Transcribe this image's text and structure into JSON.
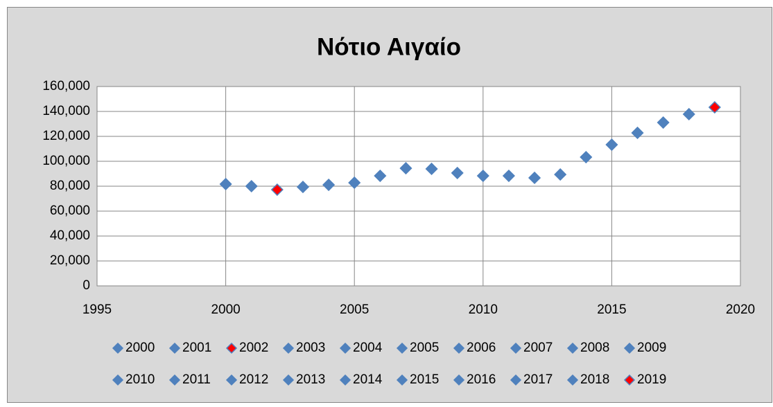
{
  "chart_data": {
    "type": "scatter",
    "title": "Νότιο Αιγαίο",
    "xlim": [
      1995,
      2020
    ],
    "xticks": [
      1995,
      2000,
      2005,
      2010,
      2015,
      2020
    ],
    "ylim": [
      0,
      160000
    ],
    "yticks": [
      0,
      {
        "value": 20000,
        "label": "20,000"
      },
      {
        "value": 40000,
        "label": "40,000"
      },
      {
        "value": 60000,
        "label": "60,000"
      },
      {
        "value": 80000,
        "label": "80,000"
      },
      {
        "value": 100000,
        "label": "100,000"
      },
      {
        "value": 120000,
        "label": "120,000"
      },
      {
        "value": 140000,
        "label": "140,000"
      },
      {
        "value": 160000,
        "label": "160,000"
      }
    ],
    "grid": true,
    "legend": "bottom",
    "marker_edge_color": "#4f81bd",
    "series": [
      {
        "name": "2000",
        "color": "#4f81bd",
        "x": [
          2000
        ],
        "values": [
          81700
        ]
      },
      {
        "name": "2001",
        "color": "#4f81bd",
        "x": [
          2001
        ],
        "values": [
          80000
        ]
      },
      {
        "name": "2002",
        "color": "#ff0000",
        "x": [
          2002
        ],
        "values": [
          77200
        ]
      },
      {
        "name": "2003",
        "color": "#4f81bd",
        "x": [
          2003
        ],
        "values": [
          79400
        ]
      },
      {
        "name": "2004",
        "color": "#4f81bd",
        "x": [
          2004
        ],
        "values": [
          81100
        ]
      },
      {
        "name": "2005",
        "color": "#4f81bd",
        "x": [
          2005
        ],
        "values": [
          82800
        ]
      },
      {
        "name": "2006",
        "color": "#4f81bd",
        "x": [
          2006
        ],
        "values": [
          88300
        ]
      },
      {
        "name": "2007",
        "color": "#4f81bd",
        "x": [
          2007
        ],
        "values": [
          94400
        ]
      },
      {
        "name": "2008",
        "color": "#4f81bd",
        "x": [
          2008
        ],
        "values": [
          93900
        ]
      },
      {
        "name": "2009",
        "color": "#4f81bd",
        "x": [
          2009
        ],
        "values": [
          90600
        ]
      },
      {
        "name": "2010",
        "color": "#4f81bd",
        "x": [
          2010
        ],
        "values": [
          88300
        ]
      },
      {
        "name": "2011",
        "color": "#4f81bd",
        "x": [
          2011
        ],
        "values": [
          88300
        ]
      },
      {
        "name": "2012",
        "color": "#4f81bd",
        "x": [
          2012
        ],
        "values": [
          86700
        ]
      },
      {
        "name": "2013",
        "color": "#4f81bd",
        "x": [
          2013
        ],
        "values": [
          89400
        ]
      },
      {
        "name": "2014",
        "color": "#4f81bd",
        "x": [
          2014
        ],
        "values": [
          103300
        ]
      },
      {
        "name": "2015",
        "color": "#4f81bd",
        "x": [
          2015
        ],
        "values": [
          113300
        ]
      },
      {
        "name": "2016",
        "color": "#4f81bd",
        "x": [
          2016
        ],
        "values": [
          122800
        ]
      },
      {
        "name": "2017",
        "color": "#4f81bd",
        "x": [
          2017
        ],
        "values": [
          131100
        ]
      },
      {
        "name": "2018",
        "color": "#4f81bd",
        "x": [
          2018
        ],
        "values": [
          137800
        ]
      },
      {
        "name": "2019",
        "color": "#ff0000",
        "x": [
          2019
        ],
        "values": [
          143300
        ]
      }
    ]
  }
}
